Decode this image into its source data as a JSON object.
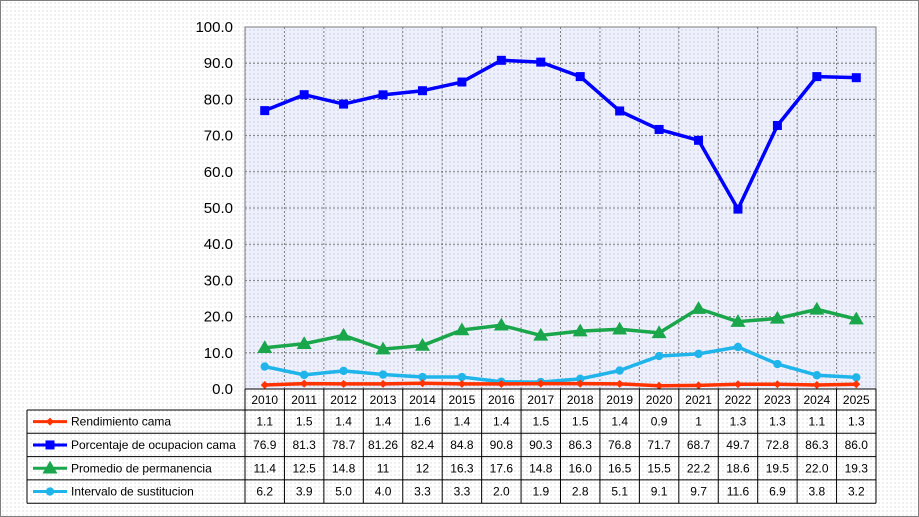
{
  "chart_data": {
    "type": "line",
    "title": "",
    "xlabel": "",
    "ylabel": "",
    "ylim": [
      0,
      100
    ],
    "y_ticks": [
      "0.0",
      "10.0",
      "20.0",
      "30.0",
      "40.0",
      "50.0",
      "60.0",
      "70.0",
      "80.0",
      "90.0",
      "100.0"
    ],
    "grid": true,
    "legend": "data-table-below",
    "categories": [
      "2010",
      "2011",
      "2012",
      "2013",
      "2014",
      "2015",
      "2016",
      "2017",
      "2018",
      "2019",
      "2020",
      "2021",
      "2022",
      "2023",
      "2024",
      "2025"
    ],
    "series": [
      {
        "name": "Rendimiento cama",
        "color": "#ff3300",
        "marker": "diamond",
        "values": [
          1.1,
          1.5,
          1.4,
          1.4,
          1.6,
          1.4,
          1.4,
          1.5,
          1.5,
          1.4,
          0.9,
          1,
          1.3,
          1.3,
          1.1,
          1.3
        ],
        "labels": [
          "1.1",
          "1.5",
          "1.4",
          "1.4",
          "1.6",
          "1.4",
          "1.4",
          "1.5",
          "1.5",
          "1.4",
          "0.9",
          "1",
          "1.3",
          "1.3",
          "1.1",
          "1.3"
        ]
      },
      {
        "name": "Porcentaje de ocupacion cama",
        "color": "#0000ff",
        "marker": "square",
        "values": [
          76.9,
          81.3,
          78.7,
          81.26,
          82.4,
          84.8,
          90.8,
          90.3,
          86.3,
          76.8,
          71.7,
          68.7,
          49.7,
          72.8,
          86.3,
          86.0
        ],
        "labels": [
          "76.9",
          "81.3",
          "78.7",
          "81.26",
          "82.4",
          "84.8",
          "90.8",
          "90.3",
          "86.3",
          "76.8",
          "71.7",
          "68.7",
          "49.7",
          "72.8",
          "86.3",
          "86.0"
        ]
      },
      {
        "name": "Promedio de permanencia",
        "color": "#1aa64a",
        "marker": "triangle",
        "values": [
          11.4,
          12.5,
          14.8,
          11,
          12,
          16.3,
          17.6,
          14.8,
          16.0,
          16.5,
          15.5,
          22.2,
          18.6,
          19.5,
          22.0,
          19.3
        ],
        "labels": [
          "11.4",
          "12.5",
          "14.8",
          "11",
          "12",
          "16.3",
          "17.6",
          "14.8",
          "16.0",
          "16.5",
          "15.5",
          "22.2",
          "18.6",
          "19.5",
          "22.0",
          "19.3"
        ]
      },
      {
        "name": "Intervalo de sustitucion",
        "color": "#1fb5ea",
        "marker": "circle",
        "values": [
          6.2,
          3.9,
          5.0,
          4.0,
          3.3,
          3.3,
          2.0,
          1.9,
          2.8,
          5.1,
          9.1,
          9.7,
          11.6,
          6.9,
          3.8,
          3.2
        ],
        "labels": [
          "6.2",
          "3.9",
          "5.0",
          "4.0",
          "3.3",
          "3.3",
          "2.0",
          "1.9",
          "2.8",
          "5.1",
          "9.1",
          "9.7",
          "11.6",
          "6.9",
          "3.8",
          "3.2"
        ]
      }
    ]
  }
}
